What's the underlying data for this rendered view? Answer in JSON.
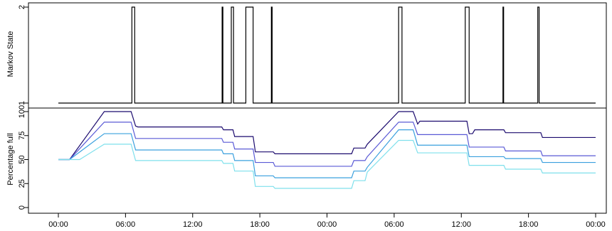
{
  "chart_data": [
    {
      "type": "line",
      "ylabel": "Markov State",
      "ylim": [
        1,
        2
      ],
      "yticks": [
        {
          "value": 1,
          "label": "1"
        },
        {
          "value": 2,
          "label": "2"
        }
      ],
      "grid": false,
      "series": [
        {
          "color": "#000000",
          "step": true,
          "x": [
            0,
            6.57,
            6.82,
            14.63,
            14.7,
            15.45,
            15.65,
            16.75,
            17.4,
            19.03,
            19.1,
            30.4,
            30.7,
            36.35,
            36.7,
            39.72,
            39.78,
            42.83,
            42.95,
            48.0
          ],
          "values": [
            1,
            2,
            1,
            2,
            1,
            2,
            1,
            2,
            1,
            2,
            1,
            2,
            1,
            2,
            1,
            2,
            1,
            2,
            1,
            1
          ]
        }
      ]
    },
    {
      "type": "line",
      "ylabel": "Percentage full",
      "xlim": [
        0,
        48
      ],
      "ylim": [
        0,
        100
      ],
      "yticks": [
        {
          "value": 0,
          "label": "0"
        },
        {
          "value": 25,
          "label": "25"
        },
        {
          "value": 50,
          "label": "50"
        },
        {
          "value": 75,
          "label": "75"
        },
        {
          "value": 100,
          "label": "100"
        }
      ],
      "xticks": [
        {
          "value": 0,
          "label": "00:00"
        },
        {
          "value": 6,
          "label": "06:00"
        },
        {
          "value": 12,
          "label": "12:00"
        },
        {
          "value": 18,
          "label": "18:00"
        },
        {
          "value": 24,
          "label": "00:00"
        },
        {
          "value": 30,
          "label": "06:00"
        },
        {
          "value": 36,
          "label": "12:00"
        },
        {
          "value": 42,
          "label": "18:00"
        },
        {
          "value": 48,
          "label": "00:00"
        }
      ],
      "grid": false,
      "series": [
        {
          "color": "#1b0a6e",
          "x": [
            0,
            1,
            4.1,
            6.5,
            6.9,
            7.1,
            14.6,
            14.75,
            15.6,
            15.75,
            17.4,
            17.6,
            19.2,
            19.35,
            26.2,
            26.4,
            27.4,
            27.6,
            30.4,
            31.7,
            32.1,
            32.3,
            36.5,
            36.7,
            37.0,
            37.2,
            39.8,
            39.95,
            43.1,
            43.25,
            48
          ],
          "values": [
            50,
            50,
            100,
            100,
            85,
            84,
            84,
            81,
            81,
            74,
            74,
            58,
            58,
            56,
            56,
            62,
            62,
            66,
            100,
            100,
            87,
            90,
            90,
            77,
            77,
            81,
            81,
            78,
            78,
            73,
            73
          ]
        },
        {
          "color": "#5a5ad6",
          "x": [
            0,
            1,
            4.1,
            6.5,
            6.9,
            7.1,
            14.6,
            14.75,
            15.6,
            15.75,
            17.4,
            17.6,
            19.2,
            19.35,
            26.2,
            26.4,
            27.4,
            27.6,
            30.4,
            31.7,
            32.1,
            32.3,
            36.5,
            36.7,
            37.0,
            37.2,
            39.8,
            39.95,
            43.1,
            43.25,
            48
          ],
          "values": [
            50,
            50,
            89,
            89,
            72,
            72,
            72,
            68,
            68,
            61,
            61,
            47,
            47,
            43,
            43,
            49,
            49,
            53,
            89,
            89,
            76,
            76,
            76,
            63,
            63,
            63,
            63,
            59,
            59,
            54,
            54
          ]
        },
        {
          "color": "#3aa0de",
          "x": [
            0,
            1,
            4.1,
            6.5,
            6.9,
            7.1,
            14.6,
            14.75,
            15.6,
            15.75,
            17.4,
            17.6,
            19.2,
            19.35,
            26.2,
            26.4,
            27.4,
            27.6,
            30.4,
            31.7,
            32.1,
            32.3,
            36.5,
            36.7,
            37.0,
            37.2,
            39.8,
            39.95,
            43.1,
            43.25,
            48
          ],
          "values": [
            50,
            50,
            77,
            77,
            60,
            60,
            60,
            56,
            56,
            49,
            49,
            33,
            33,
            31,
            31,
            38,
            38,
            42,
            81,
            81,
            65,
            65,
            65,
            53,
            53,
            53,
            53,
            51,
            51,
            47,
            47
          ]
        },
        {
          "color": "#7fe0ec",
          "x": [
            0,
            1,
            1.9,
            4.1,
            6.5,
            6.9,
            7.1,
            14.6,
            14.75,
            15.6,
            15.75,
            17.4,
            17.6,
            19.2,
            19.35,
            26.2,
            26.4,
            27.4,
            27.6,
            30.4,
            31.7,
            32.1,
            32.3,
            36.5,
            36.7,
            37.0,
            37.2,
            39.8,
            39.95,
            43.1,
            43.25,
            48
          ],
          "values": [
            50,
            50,
            50,
            66,
            66,
            49,
            49,
            49,
            46,
            46,
            38,
            38,
            22,
            22,
            20,
            20,
            28,
            28,
            37,
            70,
            70,
            57,
            57,
            57,
            44,
            44,
            44,
            44,
            40,
            40,
            36,
            36
          ]
        }
      ]
    }
  ]
}
